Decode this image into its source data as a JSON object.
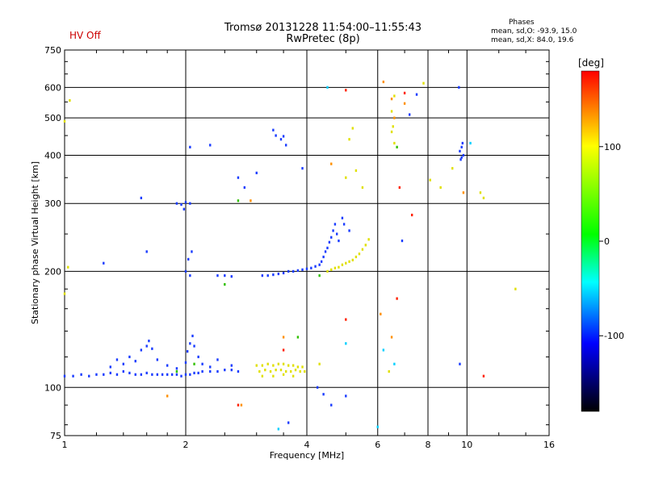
{
  "hv_status": "HV Off",
  "title": "Tromsø 20131228 11:54:00–11:55:43",
  "subtitle": "RwPretec (8p)",
  "phases": {
    "title": "Phases",
    "line_o": "mean, sd,O: -93.9, 15.0",
    "line_x": "mean, sd,X: 84.0, 19.6"
  },
  "colorbar": {
    "label": "[deg]",
    "ticks": [
      100,
      0,
      -100
    ],
    "range": [
      -180,
      180
    ],
    "colors": [
      "#ff0000",
      "#ffff00",
      "#00ff00",
      "#00ffff",
      "#0000ff",
      "#000000"
    ]
  },
  "chart_data": {
    "type": "scatter",
    "xlabel": "Frequency [MHz]",
    "ylabel": "Stationary phase Virtual Height [km]",
    "xscale": "log",
    "yscale": "log",
    "xlim": [
      1,
      16
    ],
    "ylim": [
      75,
      750
    ],
    "xticks": [
      1,
      2,
      4,
      6,
      8,
      10,
      16
    ],
    "xtick_labels": [
      "1",
      "2",
      "4",
      "6",
      "8",
      "10",
      "16"
    ],
    "yticks": [
      75,
      100,
      200,
      300,
      400,
      500,
      600,
      750
    ],
    "ytick_labels": [
      "75",
      "100",
      "200",
      "300",
      "400",
      "500",
      "600",
      "750"
    ],
    "grid": true,
    "series": [
      {
        "mode": "O",
        "color": "#1a3cff",
        "points": [
          [
            1.0,
            107
          ],
          [
            1.05,
            107
          ],
          [
            1.1,
            108
          ],
          [
            1.15,
            107
          ],
          [
            1.2,
            108
          ],
          [
            1.25,
            108
          ],
          [
            1.3,
            109
          ],
          [
            1.35,
            108
          ],
          [
            1.4,
            110
          ],
          [
            1.45,
            109
          ],
          [
            1.5,
            108
          ],
          [
            1.55,
            108
          ],
          [
            1.6,
            109
          ],
          [
            1.65,
            108
          ],
          [
            1.7,
            108
          ],
          [
            1.75,
            108
          ],
          [
            1.8,
            108
          ],
          [
            1.85,
            108
          ],
          [
            1.9,
            108
          ],
          [
            1.95,
            107
          ],
          [
            2.0,
            108
          ],
          [
            2.05,
            108
          ],
          [
            2.1,
            109
          ],
          [
            2.15,
            109
          ],
          [
            2.2,
            110
          ],
          [
            2.3,
            110
          ],
          [
            2.4,
            110
          ],
          [
            2.5,
            111
          ],
          [
            2.6,
            111
          ],
          [
            2.7,
            110
          ],
          [
            1.3,
            113
          ],
          [
            1.35,
            118
          ],
          [
            1.4,
            115
          ],
          [
            1.45,
            120
          ],
          [
            1.5,
            117
          ],
          [
            1.55,
            125
          ],
          [
            1.6,
            128
          ],
          [
            1.62,
            132
          ],
          [
            1.65,
            126
          ],
          [
            1.7,
            118
          ],
          [
            1.8,
            114
          ],
          [
            1.9,
            112
          ],
          [
            2.0,
            116
          ],
          [
            2.02,
            124
          ],
          [
            2.05,
            130
          ],
          [
            2.08,
            136
          ],
          [
            2.1,
            128
          ],
          [
            2.15,
            120
          ],
          [
            2.2,
            115
          ],
          [
            2.3,
            113
          ],
          [
            2.4,
            118
          ],
          [
            2.6,
            114
          ],
          [
            1.55,
            310
          ],
          [
            1.25,
            210
          ],
          [
            1.6,
            225
          ],
          [
            1.9,
            300
          ],
          [
            1.95,
            298
          ],
          [
            2.0,
            302
          ],
          [
            2.05,
            300
          ],
          [
            1.98,
            290
          ],
          [
            2.05,
            420
          ],
          [
            2.3,
            425
          ],
          [
            2.5,
            195
          ],
          [
            2.4,
            195
          ],
          [
            2.6,
            194
          ],
          [
            2.05,
            195
          ],
          [
            2.0,
            200
          ],
          [
            2.03,
            215
          ],
          [
            2.07,
            225
          ],
          [
            2.7,
            350
          ],
          [
            2.8,
            330
          ],
          [
            3.0,
            360
          ],
          [
            3.3,
            465
          ],
          [
            3.35,
            450
          ],
          [
            3.45,
            440
          ],
          [
            3.5,
            448
          ],
          [
            3.55,
            425
          ],
          [
            3.9,
            370
          ],
          [
            3.1,
            195
          ],
          [
            3.2,
            195
          ],
          [
            3.3,
            196
          ],
          [
            3.4,
            197
          ],
          [
            3.5,
            198
          ],
          [
            3.6,
            200
          ],
          [
            3.7,
            200
          ],
          [
            3.8,
            201
          ],
          [
            3.9,
            202
          ],
          [
            4.0,
            203
          ],
          [
            4.1,
            204
          ],
          [
            4.2,
            206
          ],
          [
            4.3,
            208
          ],
          [
            4.35,
            212
          ],
          [
            4.4,
            218
          ],
          [
            4.45,
            225
          ],
          [
            4.5,
            230
          ],
          [
            4.55,
            238
          ],
          [
            4.6,
            245
          ],
          [
            4.65,
            255
          ],
          [
            4.7,
            265
          ],
          [
            4.75,
            250
          ],
          [
            4.8,
            240
          ],
          [
            4.9,
            275
          ],
          [
            4.95,
            265
          ],
          [
            5.1,
            255
          ],
          [
            4.25,
            100
          ],
          [
            4.4,
            96
          ],
          [
            4.6,
            90
          ],
          [
            5.0,
            95
          ],
          [
            6.9,
            240
          ],
          [
            9.6,
            410
          ],
          [
            9.7,
            420
          ],
          [
            9.75,
            430
          ],
          [
            9.8,
            400
          ],
          [
            9.7,
            395
          ],
          [
            9.65,
            390
          ],
          [
            9.55,
            600
          ],
          [
            9.6,
            115
          ],
          [
            7.5,
            575
          ],
          [
            7.2,
            510
          ],
          [
            3.6,
            81
          ]
        ]
      },
      {
        "mode": "X",
        "color": "#e0e000",
        "points": [
          [
            3.0,
            114
          ],
          [
            3.1,
            114
          ],
          [
            3.2,
            115
          ],
          [
            3.3,
            114
          ],
          [
            3.4,
            115
          ],
          [
            3.5,
            115
          ],
          [
            3.6,
            114
          ],
          [
            3.7,
            114
          ],
          [
            3.8,
            113
          ],
          [
            3.9,
            113
          ],
          [
            3.05,
            110
          ],
          [
            3.15,
            111
          ],
          [
            3.25,
            110
          ],
          [
            3.35,
            111
          ],
          [
            3.45,
            111
          ],
          [
            3.55,
            110
          ],
          [
            3.65,
            110
          ],
          [
            3.75,
            111
          ],
          [
            3.85,
            110
          ],
          [
            3.95,
            110
          ],
          [
            3.1,
            107
          ],
          [
            3.3,
            107
          ],
          [
            3.5,
            108
          ],
          [
            3.7,
            107
          ],
          [
            4.5,
            200
          ],
          [
            4.6,
            202
          ],
          [
            4.7,
            204
          ],
          [
            4.8,
            205
          ],
          [
            4.9,
            208
          ],
          [
            5.0,
            210
          ],
          [
            5.1,
            212
          ],
          [
            5.2,
            214
          ],
          [
            5.3,
            218
          ],
          [
            5.4,
            222
          ],
          [
            5.5,
            228
          ],
          [
            5.6,
            234
          ],
          [
            5.7,
            242
          ],
          [
            1.02,
            205
          ],
          [
            1.0,
            175
          ],
          [
            1.0,
            490
          ],
          [
            1.03,
            555
          ],
          [
            5.2,
            470
          ],
          [
            5.1,
            440
          ],
          [
            5.3,
            365
          ],
          [
            5.0,
            350
          ],
          [
            5.5,
            330
          ],
          [
            6.6,
            430
          ],
          [
            6.5,
            460
          ],
          [
            6.55,
            475
          ],
          [
            6.6,
            570
          ],
          [
            6.5,
            520
          ],
          [
            6.4,
            110
          ],
          [
            7.8,
            615
          ],
          [
            8.1,
            345
          ],
          [
            8.6,
            330
          ],
          [
            9.2,
            370
          ],
          [
            10.8,
            320
          ],
          [
            11.0,
            310
          ],
          [
            13.2,
            180
          ],
          [
            4.3,
            115
          ]
        ]
      },
      {
        "mode": "other",
        "color": "#ff2000",
        "points": [
          [
            5.0,
            590
          ],
          [
            7.0,
            580
          ],
          [
            7.3,
            280
          ],
          [
            6.8,
            330
          ],
          [
            5.0,
            150
          ],
          [
            3.5,
            125
          ],
          [
            2.7,
            90
          ],
          [
            6.7,
            170
          ],
          [
            11.0,
            107
          ]
        ]
      },
      {
        "mode": "other",
        "color": "#00d0ff",
        "points": [
          [
            3.4,
            78
          ],
          [
            5.0,
            130
          ],
          [
            6.0,
            79
          ],
          [
            6.2,
            125
          ],
          [
            6.6,
            115
          ],
          [
            4.5,
            600
          ],
          [
            10.2,
            430
          ]
        ]
      },
      {
        "mode": "other",
        "color": "#30c000",
        "points": [
          [
            2.1,
            115
          ],
          [
            2.5,
            185
          ],
          [
            2.7,
            305
          ],
          [
            3.8,
            135
          ],
          [
            4.3,
            195
          ],
          [
            6.7,
            420
          ],
          [
            1.9,
            110
          ]
        ]
      },
      {
        "mode": "other",
        "color": "#ff9000",
        "points": [
          [
            1.8,
            95
          ],
          [
            2.75,
            90
          ],
          [
            6.5,
            560
          ],
          [
            6.2,
            620
          ],
          [
            4.6,
            380
          ],
          [
            6.1,
            155
          ],
          [
            6.5,
            135
          ],
          [
            6.6,
            500
          ],
          [
            7.0,
            545
          ],
          [
            9.8,
            320
          ],
          [
            3.5,
            135
          ],
          [
            2.9,
            305
          ]
        ]
      }
    ]
  }
}
